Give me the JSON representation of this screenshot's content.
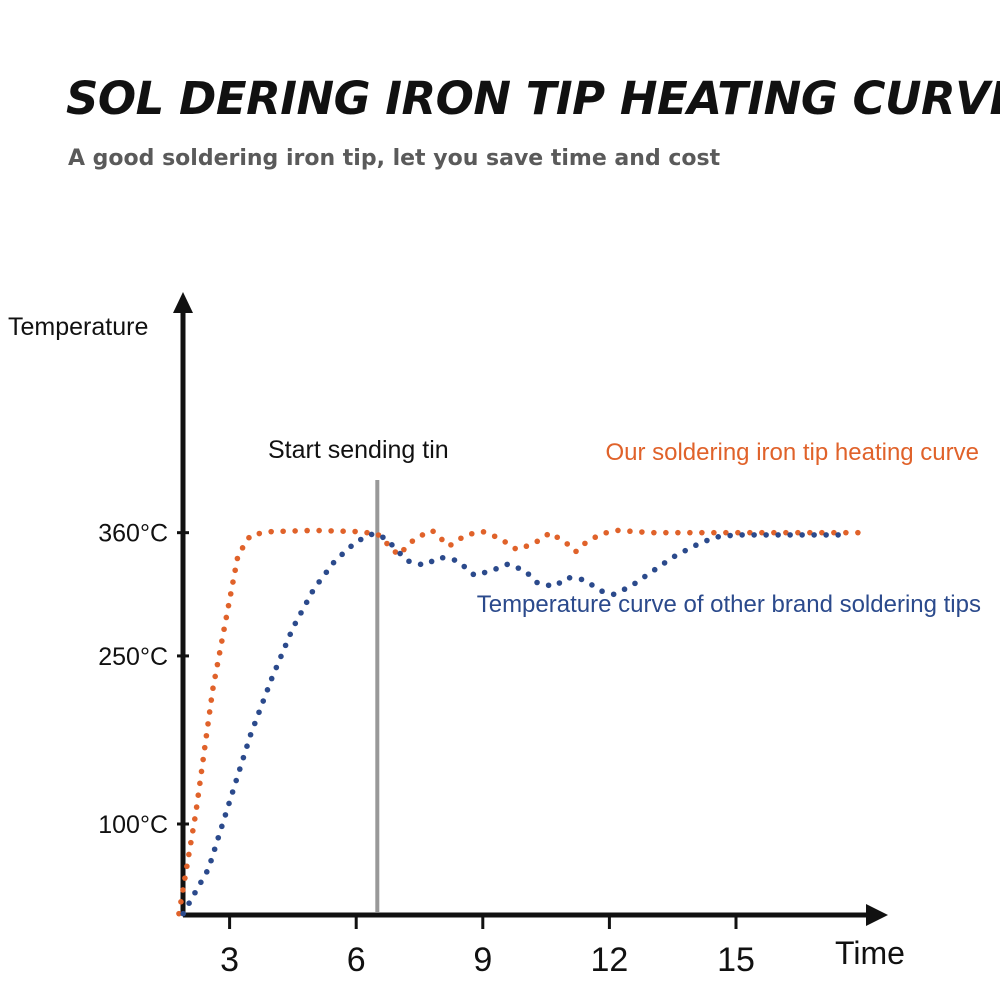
{
  "header": {
    "title": "SOL DERING IRON TIP HEATING CURVE",
    "subtitle": "A good soldering iron tip, let you save time and cost"
  },
  "chart_data": {
    "type": "scatter",
    "ylabel": "Temperature",
    "xlabel": "Time",
    "x_ticks": [
      3,
      6,
      9,
      12,
      15
    ],
    "y_ticks": [
      {
        "value": 100,
        "label": "100°C"
      },
      {
        "value": 250,
        "label": "250°C"
      },
      {
        "value": 360,
        "label": "360°C"
      }
    ],
    "annotation": {
      "x": 6.5,
      "label": "Start sending tin",
      "color": "#999999"
    },
    "series": [
      {
        "name": "Our soldering iron tip heating curve",
        "color": "#e0622a",
        "points": [
          [
            1.8,
            20
          ],
          [
            2.2,
            110
          ],
          [
            2.6,
            220
          ],
          [
            3.0,
            300
          ],
          [
            3.2,
            340
          ],
          [
            3.5,
            358
          ],
          [
            4.0,
            361
          ],
          [
            5.0,
            362
          ],
          [
            6.0,
            361
          ],
          [
            6.5,
            359
          ],
          [
            7.0,
            340
          ],
          [
            7.4,
            355
          ],
          [
            7.8,
            362
          ],
          [
            8.2,
            348
          ],
          [
            8.6,
            358
          ],
          [
            9.0,
            361
          ],
          [
            9.4,
            355
          ],
          [
            9.8,
            345
          ],
          [
            10.2,
            350
          ],
          [
            10.6,
            360
          ],
          [
            11.0,
            350
          ],
          [
            11.2,
            343
          ],
          [
            11.4,
            350
          ],
          [
            11.8,
            359
          ],
          [
            12.2,
            362
          ],
          [
            13.0,
            360
          ],
          [
            14.0,
            360
          ],
          [
            15.0,
            360
          ],
          [
            16.0,
            360
          ],
          [
            17.0,
            360
          ],
          [
            18.0,
            360
          ]
        ]
      },
      {
        "name": "Temperature curve of other brand soldering tips",
        "color": "#2b4a8c",
        "points": [
          [
            1.9,
            20
          ],
          [
            2.5,
            60
          ],
          [
            3.0,
            120
          ],
          [
            3.5,
            180
          ],
          [
            4.0,
            230
          ],
          [
            4.5,
            275
          ],
          [
            5.0,
            310
          ],
          [
            5.5,
            335
          ],
          [
            6.0,
            352
          ],
          [
            6.4,
            359
          ],
          [
            6.7,
            355
          ],
          [
            7.2,
            335
          ],
          [
            7.6,
            331
          ],
          [
            8.0,
            338
          ],
          [
            8.4,
            335
          ],
          [
            8.8,
            322
          ],
          [
            9.2,
            326
          ],
          [
            9.6,
            332
          ],
          [
            10.0,
            326
          ],
          [
            10.3,
            315
          ],
          [
            10.7,
            312
          ],
          [
            11.0,
            320
          ],
          [
            11.4,
            318
          ],
          [
            11.8,
            308
          ],
          [
            12.1,
            305
          ],
          [
            12.5,
            312
          ],
          [
            13.0,
            325
          ],
          [
            13.5,
            338
          ],
          [
            14.0,
            348
          ],
          [
            14.5,
            356
          ],
          [
            15.0,
            358
          ],
          [
            16.0,
            358
          ],
          [
            17.0,
            358
          ],
          [
            17.6,
            358
          ]
        ]
      }
    ]
  }
}
